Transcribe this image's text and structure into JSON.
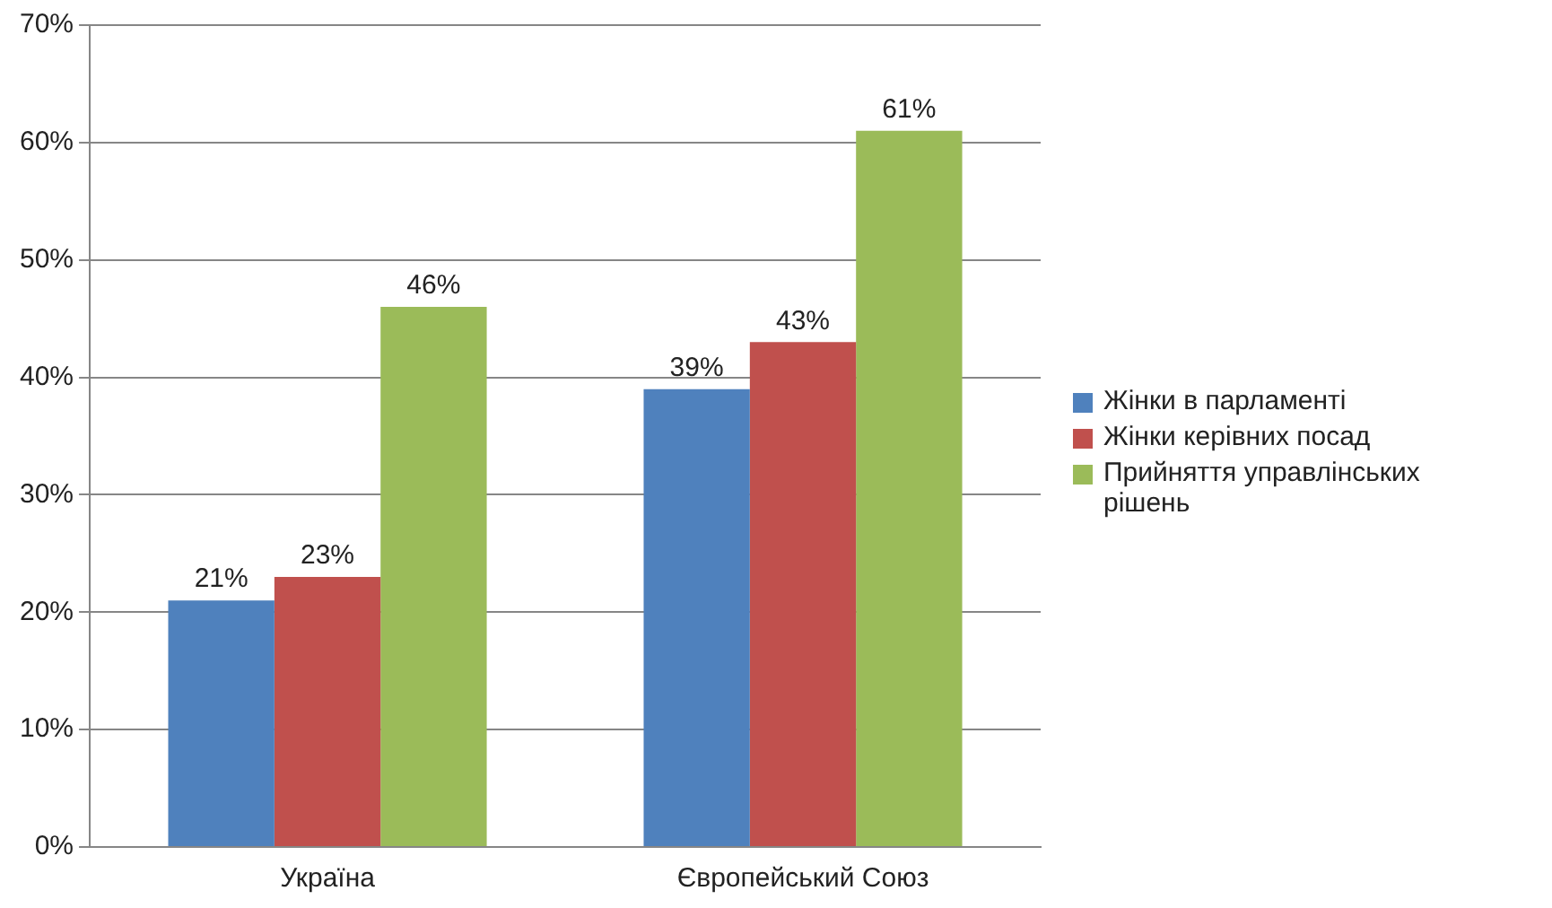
{
  "chart_data": {
    "type": "bar",
    "categories": [
      "Україна",
      "Європейський Союз"
    ],
    "series": [
      {
        "name": "Жінки в парламенті",
        "color": "#4f81bd",
        "values": [
          21,
          39
        ],
        "value_labels": [
          "21%",
          "39%"
        ]
      },
      {
        "name": "Жінки керівних посад",
        "color": "#c0504d",
        "values": [
          23,
          43
        ],
        "value_labels": [
          "23%",
          "43%"
        ]
      },
      {
        "name": "Прийняття управлінських рішень",
        "color": "#9bbb59",
        "values": [
          46,
          61
        ],
        "value_labels": [
          "46%",
          "61%"
        ]
      }
    ],
    "ylim": [
      0,
      70
    ],
    "yticks": [
      {
        "value": 0,
        "label": "0%"
      },
      {
        "value": 10,
        "label": "10%"
      },
      {
        "value": 20,
        "label": "20%"
      },
      {
        "value": 30,
        "label": "30%"
      },
      {
        "value": 40,
        "label": "40%"
      },
      {
        "value": 50,
        "label": "50%"
      },
      {
        "value": 60,
        "label": "60%"
      },
      {
        "value": 70,
        "label": "70%"
      }
    ],
    "grid": "y",
    "legend": "right"
  }
}
